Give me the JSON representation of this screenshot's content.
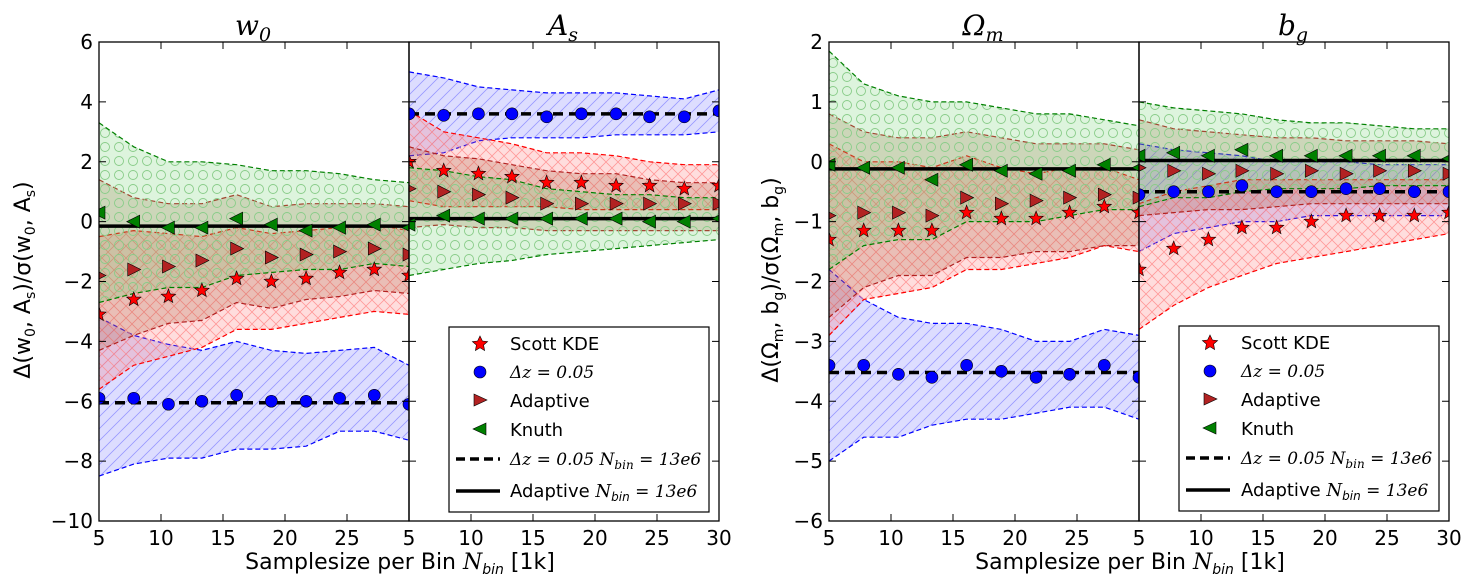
{
  "chart_data": [
    {
      "type": "line",
      "panel": "w0",
      "title": "w₀",
      "ylabel": "Δ(w₀, Aₛ)/σ(w₀, Aₛ)",
      "xlim": [
        5,
        30
      ],
      "ylim": [
        -10,
        6
      ],
      "yticks": [
        -10,
        -8,
        -6,
        -4,
        -2,
        0,
        2,
        4,
        6
      ],
      "xticks": [
        5,
        10,
        15,
        20,
        25
      ],
      "series": [
        {
          "name": "Scott KDE",
          "x": [
            5,
            7.8,
            10.6,
            13.3,
            16.1,
            18.9,
            21.7,
            24.4,
            27.2,
            30
          ],
          "values": [
            -3.1,
            -2.6,
            -2.5,
            -2.3,
            -1.9,
            -2.0,
            -1.9,
            -1.7,
            -1.6,
            -1.8
          ],
          "upper": [
            -0.5,
            -0.3,
            -0.4,
            -0.5,
            -0.2,
            -0.4,
            -0.3,
            -0.2,
            -0.1,
            -0.3
          ],
          "lower": [
            -5.6,
            -4.8,
            -4.5,
            -4.2,
            -3.6,
            -3.6,
            -3.4,
            -3.2,
            -3.0,
            -3.1
          ]
        },
        {
          "name": "Δz = 0.05",
          "x": [
            5,
            7.8,
            10.6,
            13.3,
            16.1,
            18.9,
            21.7,
            24.4,
            27.2,
            30
          ],
          "values": [
            -5.9,
            -5.9,
            -6.1,
            -6.0,
            -5.8,
            -6.0,
            -6.0,
            -5.9,
            -5.8,
            -6.1
          ],
          "upper": [
            -3.2,
            -3.8,
            -4.1,
            -4.3,
            -4.0,
            -4.3,
            -4.4,
            -4.3,
            -4.2,
            -4.8
          ],
          "lower": [
            -8.5,
            -8.1,
            -7.9,
            -7.9,
            -7.6,
            -7.6,
            -7.5,
            -7.0,
            -7.0,
            -7.3
          ]
        },
        {
          "name": "Adaptive",
          "x": [
            5,
            7.8,
            10.6,
            13.3,
            16.1,
            18.9,
            21.7,
            24.4,
            27.2,
            30
          ],
          "values": [
            -1.8,
            -1.6,
            -1.5,
            -1.3,
            -0.9,
            -1.2,
            -1.1,
            -1.0,
            -0.9,
            -1.1
          ],
          "upper": [
            1.4,
            0.8,
            0.6,
            0.6,
            0.9,
            0.5,
            0.6,
            0.6,
            0.6,
            0.5
          ],
          "lower": [
            -4.3,
            -3.8,
            -3.4,
            -3.3,
            -2.7,
            -2.9,
            -2.6,
            -2.5,
            -2.3,
            -2.4
          ]
        },
        {
          "name": "Knuth",
          "x": [
            5,
            7.8,
            10.6,
            13.3,
            16.1,
            18.9,
            21.7,
            24.4,
            27.2,
            30
          ],
          "values": [
            0.3,
            -0.0,
            -0.2,
            -0.2,
            0.1,
            -0.1,
            -0.3,
            -0.2,
            -0.1,
            -0.2
          ],
          "upper": [
            3.3,
            2.5,
            2.0,
            2.0,
            1.9,
            1.7,
            1.7,
            1.6,
            1.4,
            1.3
          ],
          "lower": [
            -2.7,
            -2.4,
            -2.2,
            -2.2,
            -1.8,
            -1.7,
            -1.6,
            -1.6,
            -1.4,
            -1.5
          ]
        }
      ],
      "reference_lines": [
        {
          "name": "Δz = 0.05 N_bin = 13e6",
          "y": -6.05,
          "style": "dashed"
        },
        {
          "name": "Adaptive N_bin = 13e6",
          "y": -0.15,
          "style": "solid"
        }
      ]
    },
    {
      "type": "line",
      "panel": "As",
      "title": "Aₛ",
      "xlim": [
        5,
        30
      ],
      "ylim": [
        -10,
        6
      ],
      "xticks": [
        5,
        10,
        15,
        20,
        25,
        30
      ],
      "series": [
        {
          "name": "Scott KDE",
          "x": [
            5,
            7.8,
            10.6,
            13.3,
            16.1,
            18.9,
            21.7,
            24.4,
            27.2,
            30
          ],
          "values": [
            2.0,
            1.7,
            1.6,
            1.5,
            1.3,
            1.3,
            1.2,
            1.2,
            1.1,
            1.2
          ],
          "upper": [
            3.7,
            3.0,
            2.8,
            2.6,
            2.3,
            2.3,
            2.2,
            2.0,
            1.9,
            1.9
          ],
          "lower": [
            0.7,
            0.5,
            0.5,
            0.5,
            0.5,
            0.4,
            0.4,
            0.4,
            0.4,
            0.4
          ]
        },
        {
          "name": "Δz = 0.05",
          "x": [
            5,
            7.8,
            10.6,
            13.3,
            16.1,
            18.9,
            21.7,
            24.4,
            27.2,
            30
          ],
          "values": [
            3.6,
            3.55,
            3.6,
            3.6,
            3.5,
            3.6,
            3.6,
            3.5,
            3.5,
            3.7
          ],
          "upper": [
            5.0,
            4.8,
            4.5,
            4.4,
            4.3,
            4.3,
            4.3,
            4.2,
            4.1,
            4.4
          ],
          "lower": [
            2.2,
            2.3,
            2.7,
            2.8,
            2.8,
            2.8,
            2.9,
            2.9,
            2.9,
            3.0
          ]
        },
        {
          "name": "Adaptive",
          "x": [
            5,
            7.8,
            10.6,
            13.3,
            16.1,
            18.9,
            21.7,
            24.4,
            27.2,
            30
          ],
          "values": [
            1.1,
            1.0,
            0.9,
            0.8,
            0.6,
            0.6,
            0.6,
            0.6,
            0.6,
            0.6
          ],
          "upper": [
            2.5,
            2.2,
            2.1,
            1.9,
            1.7,
            1.6,
            1.6,
            1.4,
            1.3,
            1.3
          ],
          "lower": [
            -0.2,
            -0.1,
            -0.2,
            -0.2,
            -0.3,
            -0.3,
            -0.3,
            -0.3,
            -0.3,
            -0.3
          ]
        },
        {
          "name": "Knuth",
          "x": [
            5,
            7.8,
            10.6,
            13.3,
            16.1,
            18.9,
            21.7,
            24.4,
            27.2,
            30
          ],
          "values": [
            -0.1,
            0.2,
            0.1,
            0.1,
            0.1,
            0.1,
            0.1,
            0.0,
            0.0,
            0.1
          ],
          "upper": [
            1.8,
            1.7,
            1.5,
            1.4,
            1.1,
            1.0,
            0.9,
            0.9,
            0.8,
            0.8
          ],
          "lower": [
            -1.8,
            -1.6,
            -1.4,
            -1.3,
            -1.1,
            -1.0,
            -0.9,
            -0.8,
            -0.7,
            -0.6
          ]
        }
      ],
      "reference_lines": [
        {
          "name": "Δz = 0.05 N_bin = 13e6",
          "y": 3.6,
          "style": "dashed"
        },
        {
          "name": "Adaptive N_bin = 13e6",
          "y": 0.1,
          "style": "solid"
        }
      ]
    },
    {
      "type": "line",
      "panel": "Om",
      "title": "Ωₘ",
      "ylabel": "Δ(Ωₘ, b_g)/σ(Ωₘ, b_g)",
      "xlim": [
        5,
        30
      ],
      "ylim": [
        -6,
        2
      ],
      "yticks": [
        -6,
        -5,
        -4,
        -3,
        -2,
        -1,
        0,
        1,
        2
      ],
      "xticks": [
        5,
        10,
        15,
        20,
        25
      ],
      "series": [
        {
          "name": "Scott KDE",
          "x": [
            5,
            7.8,
            10.6,
            13.3,
            16.1,
            18.9,
            21.7,
            24.4,
            27.2,
            30
          ],
          "values": [
            -1.3,
            -1.15,
            -1.15,
            -1.15,
            -0.85,
            -0.95,
            -0.95,
            -0.85,
            -0.75,
            -0.85
          ],
          "upper": [
            0.3,
            0.0,
            0.0,
            -0.1,
            0.1,
            -0.1,
            -0.2,
            -0.1,
            -0.1,
            -0.3
          ],
          "lower": [
            -2.9,
            -2.3,
            -2.2,
            -2.1,
            -1.8,
            -1.8,
            -1.7,
            -1.6,
            -1.4,
            -1.5
          ]
        },
        {
          "name": "Δz = 0.05",
          "x": [
            5,
            7.8,
            10.6,
            13.3,
            16.1,
            18.9,
            21.7,
            24.4,
            27.2,
            30
          ],
          "values": [
            -3.4,
            -3.4,
            -3.55,
            -3.6,
            -3.4,
            -3.5,
            -3.6,
            -3.55,
            -3.4,
            -3.6
          ],
          "upper": [
            -1.8,
            -2.3,
            -2.6,
            -2.7,
            -2.7,
            -2.8,
            -3.0,
            -3.0,
            -2.8,
            -2.9
          ],
          "lower": [
            -5.0,
            -4.6,
            -4.6,
            -4.4,
            -4.3,
            -4.3,
            -4.2,
            -4.1,
            -4.1,
            -4.3
          ]
        },
        {
          "name": "Adaptive",
          "x": [
            5,
            7.8,
            10.6,
            13.3,
            16.1,
            18.9,
            21.7,
            24.4,
            27.2,
            30
          ],
          "values": [
            -0.9,
            -0.85,
            -0.85,
            -0.9,
            -0.6,
            -0.7,
            -0.65,
            -0.6,
            -0.55,
            -0.6
          ],
          "upper": [
            0.8,
            0.5,
            0.4,
            0.4,
            0.5,
            0.4,
            0.3,
            0.3,
            0.3,
            0.2
          ],
          "lower": [
            -2.6,
            -2.1,
            -1.9,
            -1.9,
            -1.6,
            -1.6,
            -1.5,
            -1.5,
            -1.4,
            -1.4
          ]
        },
        {
          "name": "Knuth",
          "x": [
            5,
            7.8,
            10.6,
            13.3,
            16.1,
            18.9,
            21.7,
            24.4,
            27.2,
            30
          ],
          "values": [
            -0.05,
            -0.1,
            -0.1,
            -0.3,
            -0.05,
            -0.15,
            -0.2,
            -0.15,
            -0.05,
            -0.1
          ],
          "upper": [
            1.85,
            1.3,
            1.1,
            1.0,
            1.0,
            0.9,
            0.8,
            0.8,
            0.7,
            0.6
          ],
          "lower": [
            -1.8,
            -1.4,
            -1.3,
            -1.3,
            -1.0,
            -1.0,
            -1.0,
            -0.9,
            -0.8,
            -0.8
          ]
        }
      ],
      "reference_lines": [
        {
          "name": "Δz = 0.05 N_bin = 13e6",
          "y": -3.52,
          "style": "dashed"
        },
        {
          "name": "Adaptive N_bin = 13e6",
          "y": -0.12,
          "style": "solid"
        }
      ]
    },
    {
      "type": "line",
      "panel": "bg",
      "title": "b_g",
      "xlim": [
        5,
        30
      ],
      "ylim": [
        -6,
        2
      ],
      "xticks": [
        5,
        10,
        15,
        20,
        25,
        30
      ],
      "series": [
        {
          "name": "Scott KDE",
          "x": [
            5,
            7.8,
            10.6,
            13.3,
            16.1,
            18.9,
            21.7,
            24.4,
            27.2,
            30
          ],
          "values": [
            -1.8,
            -1.45,
            -1.3,
            -1.1,
            -1.1,
            -1.0,
            -0.9,
            -0.9,
            -0.9,
            -0.85
          ],
          "upper": [
            -0.7,
            -0.5,
            -0.4,
            -0.3,
            -0.3,
            -0.3,
            -0.3,
            -0.3,
            -0.3,
            -0.3
          ],
          "lower": [
            -2.8,
            -2.4,
            -2.1,
            -1.9,
            -1.7,
            -1.6,
            -1.5,
            -1.4,
            -1.3,
            -1.2
          ]
        },
        {
          "name": "Δz = 0.05",
          "x": [
            5,
            7.8,
            10.6,
            13.3,
            16.1,
            18.9,
            21.7,
            24.4,
            27.2,
            30
          ],
          "values": [
            -0.55,
            -0.5,
            -0.5,
            -0.4,
            -0.5,
            -0.5,
            -0.45,
            -0.45,
            -0.5,
            -0.5
          ],
          "upper": [
            0.3,
            0.2,
            0.15,
            0.1,
            0.0,
            0.0,
            0.0,
            -0.05,
            -0.05,
            -0.05
          ],
          "lower": [
            -1.5,
            -1.2,
            -1.1,
            -1.0,
            -1.0,
            -0.9,
            -0.9,
            -0.9,
            -0.9,
            -0.9
          ]
        },
        {
          "name": "Adaptive",
          "x": [
            5,
            7.8,
            10.6,
            13.3,
            16.1,
            18.9,
            21.7,
            24.4,
            27.2,
            30
          ],
          "values": [
            -0.1,
            -0.15,
            -0.2,
            -0.15,
            -0.2,
            -0.15,
            -0.2,
            -0.15,
            -0.15,
            -0.2
          ],
          "upper": [
            0.7,
            0.55,
            0.5,
            0.45,
            0.4,
            0.4,
            0.35,
            0.35,
            0.35,
            0.3
          ],
          "lower": [
            -0.9,
            -0.85,
            -0.8,
            -0.8,
            -0.75,
            -0.7,
            -0.7,
            -0.7,
            -0.7,
            -0.7
          ]
        },
        {
          "name": "Knuth",
          "x": [
            5,
            7.8,
            10.6,
            13.3,
            16.1,
            18.9,
            21.7,
            24.4,
            27.2,
            30
          ],
          "values": [
            0.1,
            0.15,
            0.1,
            0.2,
            0.1,
            0.1,
            0.1,
            0.1,
            0.1,
            0.05
          ],
          "upper": [
            1.0,
            0.9,
            0.85,
            0.8,
            0.7,
            0.65,
            0.65,
            0.6,
            0.55,
            0.55
          ],
          "lower": [
            -0.75,
            -0.6,
            -0.6,
            -0.5,
            -0.45,
            -0.45,
            -0.45,
            -0.4,
            -0.4,
            -0.4
          ]
        }
      ],
      "reference_lines": [
        {
          "name": "Δz = 0.05 N_bin = 13e6",
          "y": -0.5,
          "style": "dashed"
        },
        {
          "name": "Adaptive N_bin = 13e6",
          "y": 0.02,
          "style": "solid"
        }
      ]
    }
  ],
  "xlabel_text": "Samplesize per Bin ",
  "xlabel_math": "N",
  "xlabel_sub": "bin",
  "xlabel_unit": " [1k]",
  "legend": {
    "scott": "Scott KDE",
    "dz_prefix": "Δz = 0.05",
    "adaptive": "Adaptive",
    "knuth": "Knuth",
    "dz_line": "Δz = 0.05 N",
    "nbin_sub": "bin",
    "nbin_value": " = 13e6",
    "adaptive_line": "Adaptive ",
    "adaptive_n": "N"
  },
  "colors": {
    "scott": "#ff0000",
    "dz": "#0000ff",
    "adaptive": "#b22222",
    "knuth": "#008000",
    "scott_fill": "#ff6666",
    "dz_fill": "#6666ff",
    "adaptive_fill": "#a0522d",
    "knuth_fill": "#66cc66"
  }
}
